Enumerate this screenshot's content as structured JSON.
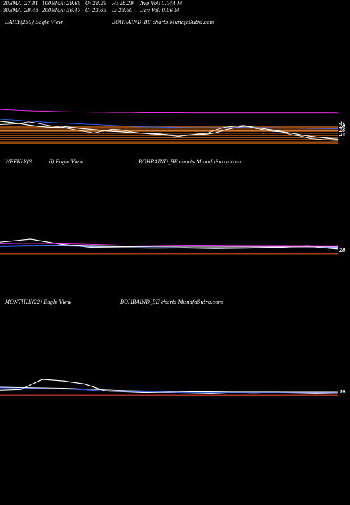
{
  "header": {
    "row1": [
      {
        "label": "20EMA:",
        "value": "27.81"
      },
      {
        "label": "100EMA:",
        "value": "29.66"
      },
      {
        "label": "O:",
        "value": "28.29"
      },
      {
        "label": "H:",
        "value": "28.29"
      },
      {
        "label": "Avg Vol:",
        "value": "0.044 M"
      }
    ],
    "row2": [
      {
        "label": "30EMA:",
        "value": "29.48"
      },
      {
        "label": "200EMA:",
        "value": "36.47"
      },
      {
        "label": "C:",
        "value": "23.65"
      },
      {
        "label": "L:",
        "value": "23.60"
      },
      {
        "label": "Day Vol:",
        "value": "0.06 M"
      }
    ]
  },
  "panels": {
    "daily": {
      "title": "DAILY(250) Eagle View",
      "watermark": "BOHRAIND_BE charts MunafaSutra.com"
    },
    "weekly": {
      "title_left": "WEEKLY(S",
      "title_right": "6) Eagle View",
      "watermark": "BOHRAIND_BE charts MunafaSutra.com"
    },
    "monthly": {
      "title": "MONTHLY(22) Eagle View",
      "watermark": "BOHRAIND_BE charts MunafaSutra.com"
    }
  },
  "colors": {
    "background": "#000000",
    "price": "#ffffff",
    "ema20": "#3366ff",
    "ema30": "#ffffff",
    "ema100": "#c8a050",
    "ema200": "#ff33ff",
    "band": "#c06010",
    "bandDark": "#804010",
    "refLine": "#ff3333"
  },
  "chart_data": [
    {
      "type": "line",
      "name": "daily",
      "price_labels": [
        "31",
        "28",
        "26",
        "24"
      ],
      "series": [
        {
          "values": [
            32.5,
            32.0,
            31.5,
            30.8,
            30.2,
            29.8,
            29.6,
            30.0,
            29.5,
            29.0,
            28.6,
            28.2,
            27.8,
            27.6,
            27.2,
            27.0,
            26.8,
            26.6,
            26.2,
            26.0,
            26.1,
            26.3,
            26.5,
            27.2,
            28.5,
            29.5,
            30.3,
            29.8,
            29.1,
            28.4,
            27.7,
            27.0,
            26.2,
            25.5,
            25.0,
            24.5,
            24.2
          ]
        },
        {
          "values": [
            33.5,
            33.2,
            32.9,
            32.6,
            32.3,
            32.0,
            31.8,
            31.6,
            31.4,
            31.2,
            31.0,
            30.8,
            30.6,
            30.4,
            30.2,
            30.0,
            29.9,
            29.8,
            29.7,
            29.6,
            29.5,
            29.5,
            29.5,
            29.5,
            29.5,
            29.6,
            29.6,
            29.6,
            29.5,
            29.5,
            29.4,
            29.4,
            29.3,
            29.2,
            29.2,
            29.1,
            29.0
          ]
        },
        {
          "values": [
            38.0,
            37.8,
            37.6,
            37.4,
            37.3,
            37.2,
            37.1,
            37.0,
            36.9,
            36.9,
            36.8,
            36.8,
            36.7,
            36.7,
            36.7,
            36.6,
            36.6,
            36.6,
            36.6,
            36.6,
            36.5,
            36.5,
            36.5,
            36.5,
            36.5,
            36.5,
            36.5,
            36.5,
            36.5,
            36.5,
            36.5,
            36.5,
            36.5,
            36.5,
            36.5,
            36.5,
            36.47
          ]
        },
        {
          "values": [
            31.0,
            31.2,
            31.4,
            32.2,
            31.6,
            30.7,
            30.1,
            29.4,
            28.5,
            27.8,
            27.1,
            28.0,
            28.8,
            28.4,
            27.6,
            27.0,
            26.6,
            26.3,
            25.9,
            25.4,
            26.0,
            26.6,
            26.9,
            28.5,
            29.8,
            30.2,
            30.6,
            29.4,
            28.6,
            27.9,
            27.6,
            26.3,
            25.6,
            24.5,
            24.1,
            23.8,
            23.65
          ]
        }
      ],
      "ylim": [
        22,
        40
      ]
    },
    {
      "type": "line",
      "name": "weekly",
      "price_labels": [
        "28"
      ],
      "series": [
        {
          "values": [
            36,
            40,
            33,
            29,
            28.5,
            28,
            28.2,
            27.5,
            28,
            28.8,
            30.5,
            26.8
          ]
        },
        {
          "values": [
            30,
            31,
            31,
            30,
            30,
            29.5,
            29.5,
            29.5,
            29.5,
            29.6,
            29.8,
            28.5
          ]
        },
        {
          "values": [
            34,
            34.5,
            34,
            33,
            32,
            31.5,
            31,
            30.8,
            30.6,
            30.5,
            30.4,
            30.2
          ]
        },
        {
          "values": [
            32,
            32,
            31.5,
            30.5,
            30,
            29.8,
            29.6,
            29.5,
            29.5,
            29.6,
            29.6,
            29.5
          ]
        }
      ],
      "ylim": [
        20,
        60
      ]
    },
    {
      "type": "line",
      "name": "monthly",
      "price_labels": [
        "19"
      ],
      "series": [
        {
          "values": [
            24,
            26,
            52,
            48,
            40,
            22,
            20,
            18,
            17,
            16,
            15,
            17,
            16,
            17,
            16,
            15,
            16
          ]
        },
        {
          "values": [
            30,
            30,
            28,
            27,
            25,
            22,
            21,
            20,
            19,
            18,
            18,
            18,
            18,
            18,
            18,
            18,
            17
          ]
        },
        {
          "values": [
            32,
            31,
            30,
            29,
            27,
            25,
            23,
            22,
            21,
            20,
            20,
            19.5,
            19.5,
            19.5,
            19,
            19,
            19
          ]
        }
      ],
      "ylim": [
        10,
        90
      ]
    }
  ]
}
